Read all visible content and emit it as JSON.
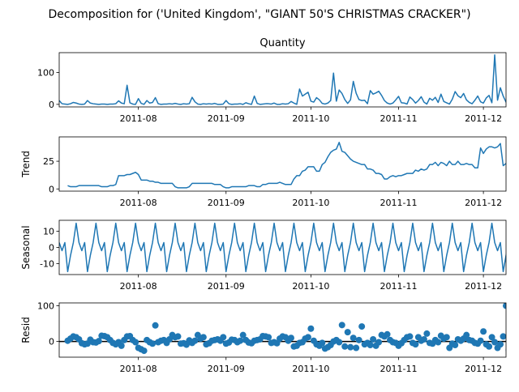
{
  "figure_title": "Decomposition for ('United Kingdom', \"GIANT 50'S CHRISTMAS CRACKER\")",
  "colors": {
    "line": "#1f77b4",
    "marker": "#1f77b4",
    "axis": "#000000",
    "zero_line": "#000000"
  },
  "chart_data": [
    {
      "type": "line",
      "title": "Quantity",
      "ylabel": "",
      "x_range": [
        "2011-07-04",
        "2011-12-09"
      ],
      "ylim": [
        -8,
        162
      ],
      "yticks": [
        0,
        100
      ],
      "xticks": [
        "2011-08",
        "2011-09",
        "2011-10",
        "2011-11",
        "2011-12"
      ],
      "grid": false,
      "series": [
        {
          "x_start": "2011-07-04",
          "step_days": 1,
          "values": [
            12,
            2,
            1,
            0,
            2,
            6,
            4,
            1,
            0,
            1,
            12,
            4,
            2,
            1,
            0,
            1,
            1,
            0,
            1,
            1,
            2,
            11,
            4,
            2,
            60,
            5,
            1,
            0,
            18,
            3,
            0,
            12,
            4,
            6,
            21,
            2,
            0,
            1,
            1,
            2,
            1,
            3,
            1,
            0,
            2,
            1,
            2,
            22,
            8,
            1,
            0,
            2,
            1,
            2,
            1,
            3,
            0,
            0,
            1,
            12,
            2,
            0,
            1,
            1,
            2,
            0,
            5,
            2,
            0,
            26,
            3,
            0,
            1,
            2,
            2,
            1,
            4,
            0,
            0,
            2,
            1,
            2,
            9,
            4,
            0,
            48,
            26,
            32,
            38,
            10,
            7,
            21,
            14,
            3,
            1,
            4,
            12,
            98,
            10,
            45,
            34,
            15,
            3,
            14,
            72,
            35,
            15,
            12,
            13,
            2,
            43,
            32,
            36,
            41,
            28,
            12,
            4,
            1,
            4,
            14,
            25,
            5,
            4,
            1,
            23,
            15,
            4,
            12,
            24,
            7,
            1,
            19,
            13,
            22,
            6,
            32,
            9,
            5,
            1,
            16,
            40,
            27,
            21,
            34,
            14,
            6,
            2,
            13,
            26,
            8,
            4,
            20,
            28,
            5,
            155,
            13,
            52,
            26,
            7,
            3,
            18,
            30,
            15,
            4,
            10,
            29,
            14,
            6,
            2,
            18,
            9,
            22,
            14,
            21,
            5,
            12,
            23,
            8,
            6,
            18,
            90,
            102,
            20,
            14,
            12,
            3,
            34,
            6
          ]
        }
      ]
    },
    {
      "type": "line",
      "title": "",
      "ylabel": "Trend",
      "x_range": [
        "2011-07-04",
        "2011-12-09"
      ],
      "ylim": [
        -2,
        47
      ],
      "yticks": [
        0,
        25
      ],
      "xticks": [
        "2011-08",
        "2011-09",
        "2011-10",
        "2011-11",
        "2011-12"
      ],
      "grid": false,
      "series": [
        {
          "x_start": "2011-07-07",
          "step_days": 1,
          "values": [
            3,
            2,
            2,
            2,
            3,
            3,
            3,
            3,
            3,
            3,
            3,
            3,
            2,
            2,
            2,
            3,
            3,
            4,
            12,
            12,
            12,
            13,
            13,
            14,
            15,
            13,
            8,
            8,
            8,
            7,
            7,
            6,
            6,
            5,
            5,
            5,
            5,
            5,
            2,
            1,
            1,
            1,
            1,
            2,
            5,
            5,
            5,
            5,
            5,
            5,
            5,
            5,
            4,
            4,
            4,
            2,
            1,
            1,
            2,
            2,
            2,
            2,
            2,
            2,
            3,
            3,
            3,
            2,
            2,
            4,
            4,
            5,
            5,
            5,
            5,
            6,
            5,
            4,
            4,
            4,
            9,
            12,
            12,
            16,
            17,
            20,
            20,
            20,
            16,
            16,
            22,
            24,
            29,
            33,
            35,
            36,
            42,
            34,
            33,
            30,
            27,
            25,
            24,
            23,
            22,
            22,
            18,
            18,
            17,
            14,
            14,
            13,
            9,
            9,
            11,
            12,
            11,
            12,
            12,
            13,
            14,
            14,
            14,
            17,
            16,
            18,
            17,
            18,
            22,
            22,
            24,
            21,
            24,
            23,
            21,
            25,
            22,
            22,
            25,
            22,
            22,
            23,
            22,
            22,
            19,
            19,
            37,
            32,
            36,
            38,
            38,
            37,
            38,
            41,
            21,
            23,
            20,
            17,
            16,
            15,
            15,
            16,
            13,
            13,
            14,
            14,
            13,
            13,
            12,
            13,
            14,
            12,
            13,
            18,
            19,
            19,
            20,
            20,
            20,
            21,
            19,
            33,
            35,
            38,
            36,
            38
          ]
        }
      ]
    },
    {
      "type": "line",
      "title": "",
      "ylabel": "Seasonal",
      "x_range": [
        "2011-07-04",
        "2011-12-09"
      ],
      "ylim": [
        -16.8,
        16.8
      ],
      "yticks": [
        -10,
        0,
        10
      ],
      "xticks": [
        "2011-08",
        "2011-09",
        "2011-10",
        "2011-11",
        "2011-12"
      ],
      "grid": false,
      "series": [
        {
          "x_start": "2011-07-04",
          "step_days": 1,
          "pattern": [
            3,
            -2,
            3,
            -15,
            -5,
            3,
            15
          ],
          "values": [
            3,
            -2,
            3,
            -15,
            -5,
            3,
            15,
            3,
            -2,
            3,
            -15,
            -5,
            3,
            15,
            3,
            -2,
            3,
            -15,
            -5,
            3,
            15,
            3,
            -2,
            3,
            -15,
            -5,
            3,
            15,
            3,
            -2,
            3,
            -15,
            -5,
            3,
            15,
            3,
            -2,
            3,
            -15,
            -5,
            3,
            15,
            3,
            -2,
            3,
            -15,
            -5,
            3,
            15,
            3,
            -2,
            3,
            -15,
            -5,
            3,
            15,
            3,
            -2,
            3,
            -15,
            -5,
            3,
            15,
            3,
            -2,
            3,
            -15,
            -5,
            3,
            15,
            3,
            -2,
            3,
            -15,
            -5,
            3,
            15,
            3,
            -2,
            3,
            -15,
            -5,
            3,
            15,
            3,
            -2,
            3,
            -15,
            -5,
            3,
            15,
            3,
            -2,
            3,
            -15,
            -5,
            3,
            15,
            3,
            -2,
            3,
            -15,
            -5,
            3,
            15,
            3,
            -2,
            3,
            -15,
            -5,
            3,
            15,
            3,
            -2,
            3,
            -15,
            -5,
            3,
            15,
            3,
            -2,
            3,
            -15,
            -5,
            3,
            15,
            3,
            -2,
            3,
            -15,
            -5,
            3,
            15,
            3,
            -2,
            3,
            -15,
            -5,
            3,
            15,
            3,
            -2,
            3,
            -15,
            -5,
            3,
            15,
            3,
            -2,
            3,
            -15,
            -5,
            3,
            15,
            3,
            -2,
            3,
            -15,
            -5,
            3,
            15,
            3,
            -2,
            3,
            -15,
            -5,
            3,
            15,
            3,
            -2,
            3,
            -15,
            -5,
            3,
            15,
            3,
            -2,
            3,
            -15,
            -5,
            3,
            15,
            3,
            -2,
            3,
            -15,
            -5,
            3,
            15,
            3,
            -2,
            3,
            -15,
            -5,
            3
          ]
        }
      ]
    },
    {
      "type": "scatter",
      "title": "",
      "ylabel": "Resid",
      "x_range": [
        "2011-07-04",
        "2011-12-09"
      ],
      "ylim": [
        -44,
        108
      ],
      "yticks": [
        0,
        100
      ],
      "xticks": [
        "2011-08",
        "2011-09",
        "2011-10",
        "2011-11",
        "2011-12"
      ],
      "grid": false,
      "zero_line": 0,
      "series": [
        {
          "x_start": "2011-07-07",
          "step_days": 1,
          "values": [
            2,
            8,
            14,
            12,
            6,
            -5,
            -8,
            -6,
            5,
            -2,
            -3,
            1,
            16,
            15,
            12,
            4,
            -4,
            -8,
            -2,
            -12,
            4,
            14,
            15,
            4,
            -2,
            -18,
            -22,
            -26,
            4,
            -2,
            -6,
            45,
            -2,
            2,
            4,
            -4,
            6,
            18,
            12,
            14,
            -6,
            -5,
            -9,
            3,
            -4,
            2,
            18,
            8,
            12,
            -8,
            -5,
            2,
            4,
            6,
            2,
            12,
            -6,
            -3,
            5,
            4,
            -2,
            2,
            18,
            4,
            -3,
            -5,
            2,
            4,
            6,
            15,
            14,
            12,
            -4,
            -2,
            -5,
            8,
            14,
            12,
            2,
            10,
            -14,
            -12,
            -4,
            -2,
            8,
            12,
            36,
            2,
            -8,
            -12,
            -4,
            -20,
            -16,
            -10,
            0,
            4,
            -2,
            46,
            -14,
            26,
            -16,
            10,
            -18,
            4,
            42,
            -8,
            -4,
            -10,
            6,
            -12,
            -2,
            18,
            14,
            20,
            4,
            -2,
            -4,
            -12,
            -5,
            4,
            12,
            14,
            -4,
            -8,
            12,
            2,
            6,
            22,
            -4,
            -6,
            4,
            -2,
            16,
            8,
            12,
            -18,
            -6,
            -10,
            6,
            2,
            8,
            18,
            4,
            2,
            -4,
            -6,
            2,
            28,
            -8,
            -14,
            12,
            -2,
            -18,
            -8,
            14,
            100,
            -24,
            -14,
            14,
            -3,
            -4,
            6,
            -14,
            10,
            18,
            6,
            -6,
            12,
            -6,
            -10,
            -22,
            10,
            12,
            16,
            -4,
            -5,
            10,
            12,
            -8,
            -14,
            2,
            5,
            -6,
            -12,
            -6,
            -22,
            -24,
            46,
            50,
            -20
          ]
        }
      ]
    }
  ]
}
